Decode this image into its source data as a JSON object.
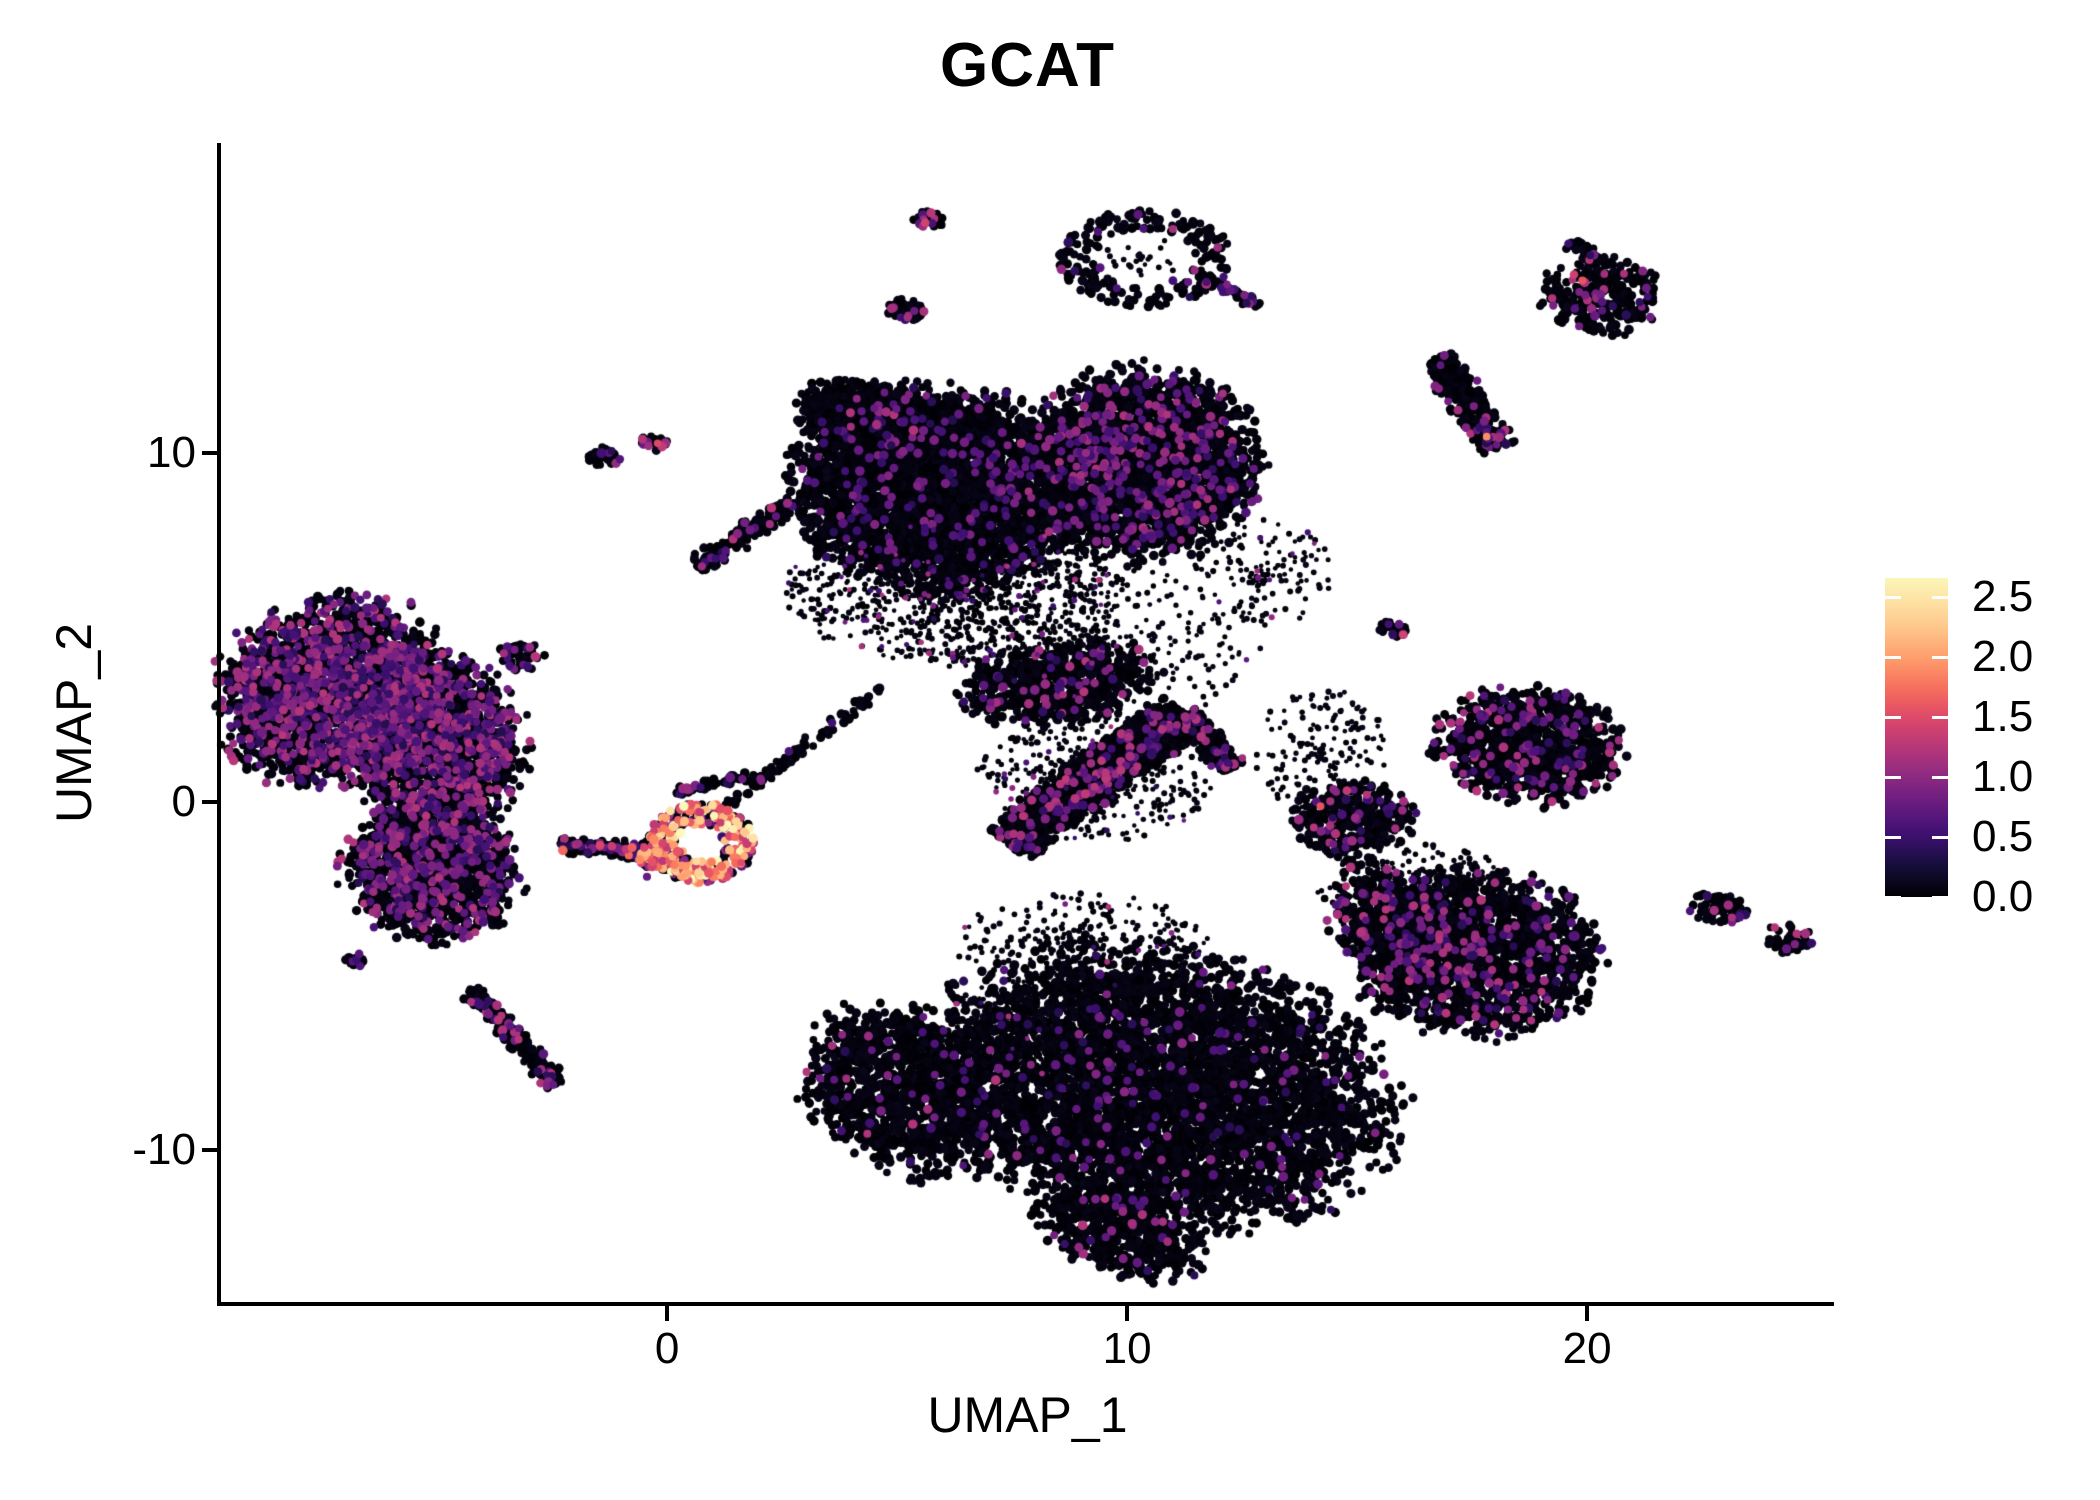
{
  "chart_data": {
    "type": "scatter",
    "title": "GCAT",
    "xlabel": "UMAP_1",
    "ylabel": "UMAP_2",
    "x_ticks": [
      0,
      10,
      20
    ],
    "x_tick_labels": [
      "0",
      "10",
      "20"
    ],
    "y_ticks": [
      10,
      0,
      -10
    ],
    "y_tick_labels": [
      "10",
      "0",
      "-10"
    ],
    "x_range": [
      -9.7,
      25.28
    ],
    "y_range": [
      -14.35,
      18.91
    ],
    "grid": false,
    "point_color_low": "#000004",
    "point_color_high": "#fcfdbf",
    "colorbar": {
      "position": "right",
      "values": [
        2.5,
        2.0,
        1.5,
        1.0,
        0.5,
        0.0
      ],
      "labels": [
        "2.5",
        "2.0",
        "1.5",
        "1.0",
        "0.5",
        "0.0"
      ],
      "vmax": 2.66,
      "colormap": "magma",
      "stops": [
        [
          0.0,
          "#000004"
        ],
        [
          0.25,
          "#140e36"
        ],
        [
          0.5,
          "#3b0f70"
        ],
        [
          0.75,
          "#641a80"
        ],
        [
          1.0,
          "#8c2981"
        ],
        [
          1.25,
          "#b73779"
        ],
        [
          1.5,
          "#de4968"
        ],
        [
          1.75,
          "#f7705c"
        ],
        [
          2.0,
          "#fe9f6d"
        ],
        [
          2.3,
          "#fecf92"
        ],
        [
          2.72,
          "#fcfdbf"
        ]
      ]
    },
    "seed": 1234,
    "clusters": [
      {
        "nm": "left-main-upper",
        "k": "blob",
        "x": -7.3,
        "y": 3.21,
        "rx": 2.2,
        "ry": 2.6,
        "rot": -30,
        "n": 2400,
        "pf": 0.32
      },
      {
        "nm": "left-main-right",
        "k": "blob",
        "x": -5.0,
        "y": 1.64,
        "rx": 1.75,
        "ry": 2.3,
        "n": 1700,
        "pf": 0.3
      },
      {
        "nm": "left-main-lower",
        "k": "blob",
        "x": -5.11,
        "y": -2.01,
        "rx": 1.75,
        "ry": 1.85,
        "n": 1400,
        "pf": 0.22
      },
      {
        "nm": "left-tail",
        "k": "line",
        "x1": -4.3,
        "y1": -5.39,
        "x2": -2.39,
        "y2": -8.09,
        "w": 0.3,
        "n": 230,
        "pf": 0.12
      },
      {
        "nm": "left-tail-island",
        "k": "blob",
        "x": -6.78,
        "y": -4.53,
        "rx": 0.22,
        "ry": 0.2,
        "n": 20,
        "pf": 0.1
      },
      {
        "nm": "left-bridge",
        "k": "line",
        "x1": -2.33,
        "y1": -1.23,
        "x2": -0.41,
        "y2": -1.43,
        "w": 0.28,
        "n": 130,
        "pf": 0.25,
        "hf": 0.04,
        "hr": [
          1.3,
          1.9
        ]
      },
      {
        "nm": "hot-ring",
        "k": "ring",
        "x": 0.74,
        "y": -1.18,
        "rx": 1.15,
        "ry": 1.15,
        "in": 0.38,
        "n": 330,
        "pf": 0.18,
        "hf": 0.57,
        "hr": [
          1.25,
          2.72
        ]
      },
      {
        "nm": "hot-west",
        "k": "blob",
        "x": -0.15,
        "y": -1.61,
        "rx": 0.5,
        "ry": 0.5,
        "n": 90,
        "pf": 0.3,
        "hf": 0.4,
        "hr": [
          1.2,
          2.2
        ]
      },
      {
        "nm": "hot-streak",
        "k": "line",
        "x1": 0.2,
        "y1": 0.26,
        "x2": 2.07,
        "y2": 0.86,
        "w": 0.16,
        "n": 55,
        "pf": 0.2
      },
      {
        "nm": "hot-trail",
        "k": "line",
        "x1": 1.11,
        "y1": -0.29,
        "x2": 4.63,
        "y2": 3.27,
        "w": 0.2,
        "n": 95,
        "pf": 0.06
      },
      {
        "nm": "isl-nw1",
        "k": "blob",
        "x": -1.35,
        "y": 9.9,
        "rx": 0.33,
        "ry": 0.28,
        "n": 38,
        "pf": 0.25
      },
      {
        "nm": "isl-nw2",
        "k": "blob",
        "x": -0.26,
        "y": 10.3,
        "rx": 0.3,
        "ry": 0.22,
        "n": 30,
        "pf": 0.25,
        "hf": 0.04,
        "hr": [
          1.3,
          1.5
        ]
      },
      {
        "nm": "diag-upper-left",
        "k": "line",
        "x1": 0.65,
        "y1": 6.77,
        "x2": 2.74,
        "y2": 8.58,
        "w": 0.35,
        "n": 160,
        "pf": 0.1
      },
      {
        "nm": "isl-west1",
        "k": "blob",
        "x": -3.2,
        "y": 4.19,
        "rx": 0.45,
        "ry": 0.38,
        "n": 55,
        "pf": 0.28
      },
      {
        "nm": "isl-west2",
        "k": "blob",
        "x": -6.11,
        "y": 4.1,
        "rx": 0.3,
        "ry": 0.25,
        "n": 26,
        "pf": 0.15
      },
      {
        "nm": "isl-top1",
        "k": "blob",
        "x": 5.7,
        "y": 16.7,
        "rx": 0.3,
        "ry": 0.3,
        "n": 34,
        "pf": 0.22,
        "hf": 0.03,
        "hr": [
          1.3,
          1.45
        ]
      },
      {
        "nm": "isl-top2",
        "k": "blob",
        "x": 5.2,
        "y": 14.1,
        "rx": 0.42,
        "ry": 0.33,
        "n": 48,
        "pf": 0.18
      },
      {
        "nm": "top-ring",
        "k": "ring",
        "x": 10.39,
        "y": 15.61,
        "rx": 1.9,
        "ry": 1.4,
        "in": 0.55,
        "n": 230,
        "pf": 0.06
      },
      {
        "nm": "top-ring-inner",
        "k": "dust",
        "x": 10.39,
        "y": 15.61,
        "rx": 0.9,
        "ry": 0.6,
        "n": 25,
        "sz": "s"
      },
      {
        "nm": "top-ring-tail",
        "k": "line",
        "x1": 12.07,
        "y1": 14.8,
        "x2": 12.85,
        "y2": 14.23,
        "w": 0.2,
        "n": 45,
        "pf": 0.3
      },
      {
        "nm": "center-main",
        "k": "blob",
        "x": 5.89,
        "y": 9.01,
        "rx": 2.95,
        "ry": 2.65,
        "rot": -15,
        "n": 3600,
        "pf": 0.05,
        "pr": [
          0.35,
          0.95
        ]
      },
      {
        "nm": "center-finger",
        "k": "blob",
        "x": 4.61,
        "y": 10.9,
        "rx": 1.7,
        "ry": 1.0,
        "rot": -25,
        "n": 800,
        "pf": 0.05
      },
      {
        "nm": "center-right-lobe",
        "k": "blob",
        "x": 10.3,
        "y": 9.7,
        "rx": 2.35,
        "ry": 2.5,
        "n": 2900,
        "pf": 0.13,
        "pr": [
          0.4,
          1.2
        ]
      },
      {
        "nm": "center-dust",
        "k": "dust",
        "x": 6.2,
        "y": 6.0,
        "rx": 3.7,
        "ry": 2.0,
        "n": 1000,
        "pf": 0.06,
        "sz": "s"
      },
      {
        "nm": "center-low-blob",
        "k": "blob",
        "x": 8.5,
        "y": 3.39,
        "rx": 2.0,
        "ry": 1.1,
        "rot": 10,
        "n": 650,
        "pf": 0.08
      },
      {
        "nm": "bird-body",
        "k": "line",
        "x1": 7.39,
        "y1": -1.18,
        "x2": 11.24,
        "y2": 2.55,
        "w": 0.75,
        "n": 1500,
        "pf": 0.1,
        "pr": [
          0.4,
          1.3
        ]
      },
      {
        "nm": "bird-hook",
        "k": "line",
        "x1": 11.24,
        "y1": 2.55,
        "x2": 12.28,
        "y2": 0.98,
        "w": 0.4,
        "n": 240,
        "pf": 0.12
      },
      {
        "nm": "bird-dust",
        "k": "dust",
        "x": 9.3,
        "y": 0.6,
        "rx": 2.6,
        "ry": 1.8,
        "n": 420,
        "pf": 0.06,
        "sz": "s"
      },
      {
        "nm": "mid-right-blob",
        "k": "blob",
        "x": 14.89,
        "y": -0.49,
        "rx": 1.25,
        "ry": 1.0,
        "n": 380,
        "pf": 0.12,
        "hf": 0.01,
        "hr": [
          1.3,
          1.6
        ]
      },
      {
        "nm": "right-upper-blob",
        "k": "blob",
        "x": 18.76,
        "y": 1.64,
        "rx": 1.9,
        "ry": 1.55,
        "rot": -10,
        "n": 1000,
        "pf": 0.13
      },
      {
        "nm": "right-lower-main",
        "k": "blob",
        "x": 17.5,
        "y": -4.3,
        "rx": 2.5,
        "ry": 2.2,
        "rot": -15,
        "n": 1800,
        "pf": 0.1
      },
      {
        "nm": "right-lower-arm",
        "k": "blob",
        "x": 15.61,
        "y": -3.39,
        "rx": 1.1,
        "ry": 1.7,
        "rot": 20,
        "n": 380,
        "pf": 0.12
      },
      {
        "nm": "right-lower-dust",
        "k": "dust",
        "x": 16.3,
        "y": -2.6,
        "rx": 2.2,
        "ry": 1.4,
        "n": 260,
        "sz": "s"
      },
      {
        "nm": "ne-diag",
        "k": "line",
        "x1": 16.74,
        "y1": 12.74,
        "x2": 18.07,
        "y2": 10.16,
        "w": 0.5,
        "n": 300,
        "pf": 0.07
      },
      {
        "nm": "ne-diag-tip",
        "k": "blob",
        "x": 17.9,
        "y": 10.45,
        "rx": 0.25,
        "ry": 0.2,
        "n": 8,
        "pf": 0.5,
        "hf": 0.25,
        "hr": [
          1.8,
          2.0
        ]
      },
      {
        "nm": "isl-mid-right",
        "k": "blob",
        "x": 15.8,
        "y": 4.99,
        "rx": 0.3,
        "ry": 0.25,
        "n": 24,
        "pf": 0.12,
        "hf": 0.05,
        "hr": [
          1.35,
          1.5
        ]
      },
      {
        "nm": "far-right-isl1",
        "k": "blob",
        "x": 22.8,
        "y": -3.04,
        "rx": 0.62,
        "ry": 0.4,
        "rot": -15,
        "n": 70,
        "pf": 0.12
      },
      {
        "nm": "far-right-isl2",
        "k": "blob",
        "x": 24.39,
        "y": -3.9,
        "rx": 0.5,
        "ry": 0.42,
        "n": 55,
        "pf": 0.12
      },
      {
        "nm": "ne-blob",
        "k": "blob",
        "x": 20.3,
        "y": 14.52,
        "rx": 1.2,
        "ry": 1.05,
        "n": 280,
        "pf": 0.08,
        "hf": 0.01,
        "hr": [
          1.3,
          1.6
        ]
      },
      {
        "nm": "ne-blob-tail",
        "k": "line",
        "x1": 19.59,
        "y1": 16.04,
        "x2": 20.3,
        "y2": 15.49,
        "w": 0.25,
        "n": 40,
        "pf": 0.15
      },
      {
        "nm": "bottom-arm",
        "k": "blob",
        "x": 5.2,
        "y": -8.29,
        "rx": 1.9,
        "ry": 2.4,
        "rot": 35,
        "n": 1200,
        "pf": 0.03
      },
      {
        "nm": "bottom-main",
        "k": "blob",
        "x": 10.7,
        "y": -8.29,
        "rx": 4.7,
        "ry": 3.6,
        "rot": -18,
        "n": 5000,
        "pf": 0.035,
        "pr": [
          0.35,
          1.0
        ]
      },
      {
        "nm": "bottom-tail",
        "k": "blob",
        "x": 9.89,
        "y": -12.4,
        "rx": 1.8,
        "ry": 1.0,
        "rot": -25,
        "n": 550,
        "pf": 0.04
      },
      {
        "nm": "bottom-dust",
        "k": "dust",
        "x": 8.0,
        "y": -6.5,
        "rx": 2.0,
        "ry": 1.5,
        "n": 300,
        "pf": 0.03,
        "sz": "s"
      },
      {
        "nm": "mid-dust1",
        "k": "dust",
        "x": 9.5,
        "y": 4.5,
        "rx": 3.5,
        "ry": 2.2,
        "n": 350,
        "pf": 0.05,
        "sz": "s"
      },
      {
        "nm": "mid-dust2",
        "k": "dust",
        "x": 13.0,
        "y": 6.5,
        "rx": 1.6,
        "ry": 1.6,
        "n": 140,
        "pf": 0.08,
        "sz": "s"
      },
      {
        "nm": "mid-dust3",
        "k": "dust",
        "x": 14.2,
        "y": 1.5,
        "rx": 1.5,
        "ry": 1.8,
        "n": 160,
        "sz": "s"
      },
      {
        "nm": "mid-dust4",
        "k": "dust",
        "x": 9.0,
        "y": -4.0,
        "rx": 2.8,
        "ry": 1.4,
        "n": 280,
        "pf": 0.04,
        "sz": "s"
      }
    ]
  }
}
